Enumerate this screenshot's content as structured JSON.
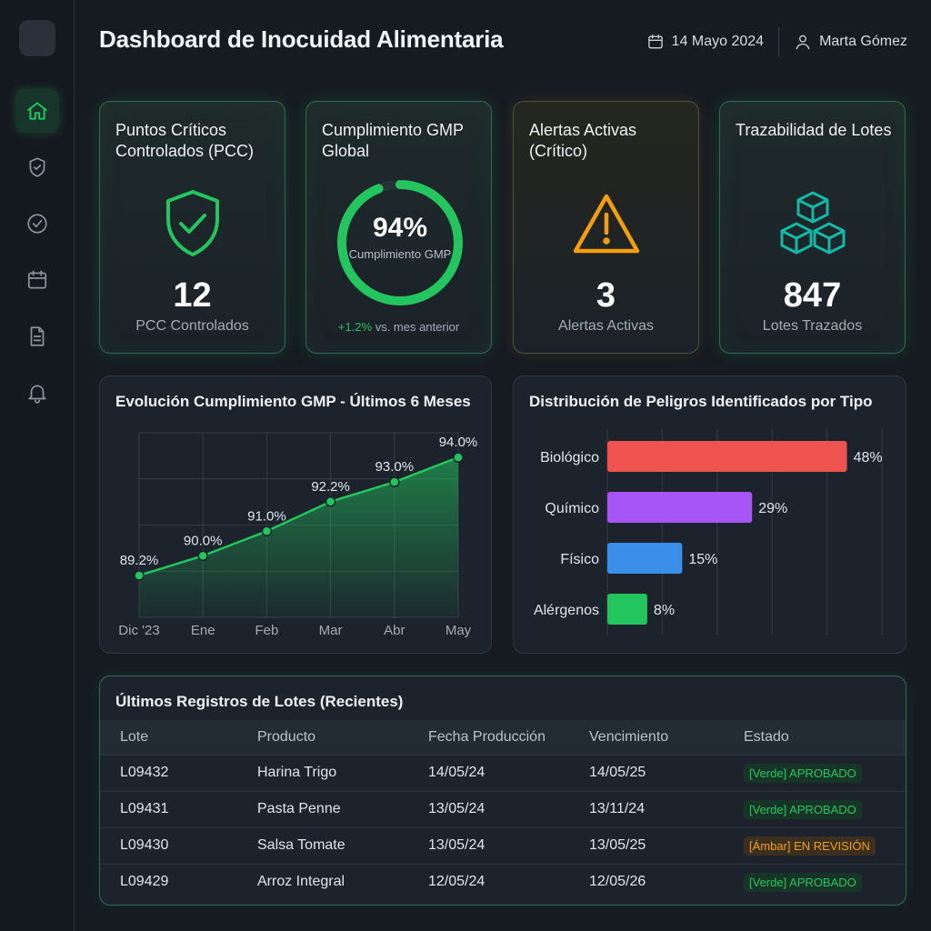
{
  "header": {
    "title": "Dashboard de Inocuidad Alimentaria",
    "date": "14 Mayo 2024",
    "user": "Marta Gómez"
  },
  "sidebar": {
    "items": [
      {
        "name": "home",
        "icon": "home-icon",
        "active": true
      },
      {
        "name": "security",
        "icon": "shield-check-icon",
        "active": false
      },
      {
        "name": "tasks",
        "icon": "check-circle-icon",
        "active": false
      },
      {
        "name": "calendar",
        "icon": "calendar-icon",
        "active": false
      },
      {
        "name": "documents",
        "icon": "document-icon",
        "active": false
      },
      {
        "name": "notifications",
        "icon": "bell-icon",
        "active": false
      }
    ]
  },
  "kpis": {
    "pcc": {
      "title": "Puntos Críticos Controlados (PCC)",
      "value": "12",
      "label": "PCC Controlados",
      "icon": "shield-check-icon"
    },
    "gmp": {
      "title": "Cumplimiento GMP Global",
      "value": "94%",
      "gauge_fraction": 0.94,
      "label": "Cumplimiento GMP",
      "delta": "+1.2%",
      "delta_text": "vs. mes anterior"
    },
    "alerts": {
      "title": "Alertas Activas (Crítico)",
      "value": "3",
      "label": "Alertas Activas",
      "icon": "warning-triangle-icon"
    },
    "lots": {
      "title": "Trazabilidad de Lotes",
      "value": "847",
      "label": "Lotes Trazados",
      "icon": "boxes-icon"
    }
  },
  "colors": {
    "accent": "#22c55e",
    "warning": "#f59e0b",
    "teal": "#14b8a6",
    "bio": "#ef5350",
    "chem": "#a855f7",
    "phys": "#3b8fe8",
    "allergen": "#22c55e"
  },
  "line_chart": {
    "title": "Evolución Cumplimiento GMP - Últimos 6 Meses"
  },
  "bar_chart": {
    "title": "Distribución de Peligros Identificados por Tipo"
  },
  "chart_data": [
    {
      "type": "area",
      "title": "Evolución Cumplimiento GMP - Últimos 6 Meses",
      "categories": [
        "Dic '23",
        "Ene",
        "Feb",
        "Mar",
        "Abr",
        "May"
      ],
      "values": [
        89.2,
        90.0,
        91.0,
        92.2,
        93.0,
        94.0
      ],
      "data_labels": [
        "89.2%",
        "90.0%",
        "91.0%",
        "92.2%",
        "93.0%",
        "94.0%"
      ],
      "ylim": [
        87.5,
        95.0
      ],
      "grid": true
    },
    {
      "type": "bar",
      "orientation": "horizontal",
      "title": "Distribución de Peligros Identificados por Tipo",
      "categories": [
        "Biológico",
        "Químico",
        "Físico",
        "Alérgenos"
      ],
      "values": [
        48,
        29,
        15,
        8
      ],
      "data_labels": [
        "48%",
        "29%",
        "15%",
        "8%"
      ],
      "xlim": [
        0,
        55
      ],
      "grid": true
    }
  ],
  "table": {
    "title": "Últimos Registros de Lotes (Recientes)",
    "columns": [
      "Lote",
      "Producto",
      "Fecha Producción",
      "Vencimiento",
      "Estado"
    ],
    "rows": [
      {
        "lote": "L09432",
        "producto": "Harina Trigo",
        "fecha": "14/05/24",
        "venc": "14/05/25",
        "estado": "[Verde] APROBADO",
        "kind": "ok"
      },
      {
        "lote": "L09431",
        "producto": "Pasta Penne",
        "fecha": "13/05/24",
        "venc": "13/11/24",
        "estado": "[Verde] APROBADO",
        "kind": "ok"
      },
      {
        "lote": "L09430",
        "producto": "Salsa Tomate",
        "fecha": "13/05/24",
        "venc": "13/05/25",
        "estado": "[Ámbar] EN REVISIÓN",
        "kind": "rev"
      },
      {
        "lote": "L09429",
        "producto": "Arroz Integral",
        "fecha": "12/05/24",
        "venc": "12/05/26",
        "estado": "[Verde] APROBADO",
        "kind": "ok"
      }
    ]
  }
}
